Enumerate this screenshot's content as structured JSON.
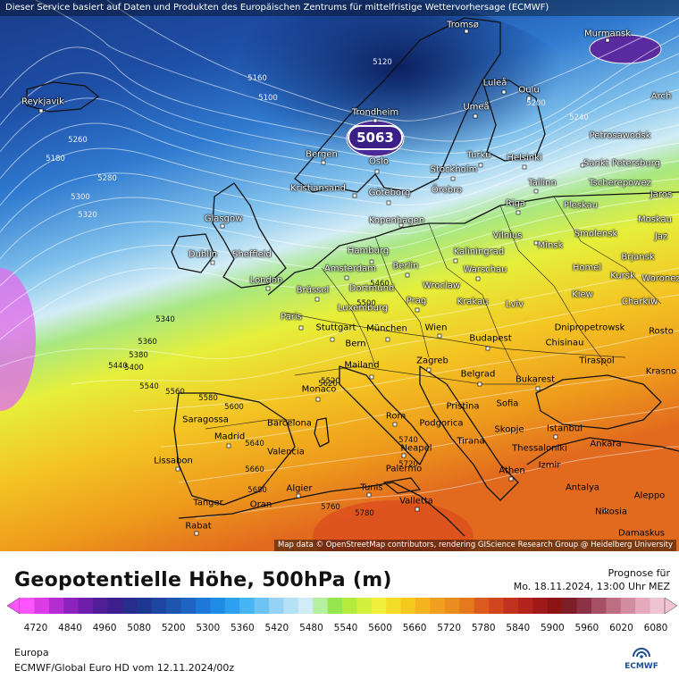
{
  "header": {
    "service_notice": "Dieser Service basiert auf Daten und Produkten des Europäischen Zentrums für mittelfristige Wettervorhersage (ECMWF)"
  },
  "map": {
    "attribution": "Map data © OpenStreetMap contributors, rendering GIScience Research Group @ Heidelberg University",
    "low_center_value": "5063",
    "cities": [
      "Tromsø",
      "Murmansk",
      "Reykjavik",
      "Luleå",
      "Oulu",
      "Arch",
      "Umeå",
      "Trondheim",
      "Petrosawodsk",
      "Bergen",
      "Oslo",
      "Turku",
      "Helsinki",
      "Sankt Petersburg",
      "Stockholm",
      "Kristiansand",
      "Göteborg",
      "Örebro",
      "Tallinn",
      "Tscherepowez",
      "Jaros",
      "Glasgow",
      "Riga",
      "Pleskau",
      "Kopenhagen",
      "Moskau",
      "Vilnius",
      "Smolensk",
      "Jaz",
      "Dublin",
      "Sheffield",
      "Hamburg",
      "Kaliningrad",
      "Minsk",
      "Brjansk",
      "Berlin",
      "Homel",
      "Kursk",
      "London",
      "Amsterdam",
      "Warschau",
      "Woronez",
      "Brüssel",
      "Dortmund",
      "Wroclaw",
      "Kiew",
      "Prag",
      "Krakau",
      "Charkiw",
      "Luxemburg",
      "Lviv",
      "Paris",
      "Dnipropetrowsk",
      "Stuttgart",
      "München",
      "Wien",
      "Chisinau",
      "Rosto",
      "Bern",
      "Budapest",
      "Tiraspol",
      "Mailand",
      "Zagreb",
      "Krasno",
      "Belgrad",
      "Monaco",
      "Bukarest",
      "Pristina",
      "Sofia",
      "Saragossa",
      "Barcelona",
      "Rom",
      "Podgorica",
      "Istanbul",
      "Madrid",
      "Skopje",
      "Tirana",
      "Ankara",
      "Neapel",
      "Valencia",
      "Thessaloniki",
      "Lissabon",
      "Palermo",
      "Athen",
      "Izmir",
      "Algier",
      "Tunis",
      "Antalya",
      "Aleppo",
      "Tanger",
      "Oran",
      "Valletta",
      "Nikosia",
      "Rabat",
      "Damaskus"
    ],
    "contour_labels": [
      "5100",
      "5120",
      "5160",
      "5180",
      "5200",
      "5240",
      "5260",
      "5280",
      "5300",
      "5320",
      "5340",
      "5360",
      "5380",
      "5400",
      "5440",
      "5460",
      "5500",
      "5520",
      "5540",
      "5560",
      "5580",
      "5600",
      "5620",
      "5640",
      "5660",
      "5680",
      "5720",
      "5740",
      "5760",
      "5780"
    ]
  },
  "footer": {
    "title": "Geopotentielle Höhe, 500hPa (m)",
    "forecast_label": "Prognose für",
    "forecast_time": "Mo. 18.11.2024, 13:00 Uhr MEZ",
    "region": "Europa",
    "model_run": "ECMWF/Global Euro HD vom  12.11.2024/00z",
    "logo_text": "ECMWF"
  },
  "legend": {
    "tick_labels": [
      "4720",
      "4840",
      "4960",
      "5080",
      "5200",
      "5300",
      "5360",
      "5420",
      "5480",
      "5540",
      "5600",
      "5660",
      "5720",
      "5780",
      "5840",
      "5900",
      "5960",
      "6020",
      "6080"
    ],
    "colors": [
      "#ff55ff",
      "#dc3ce6",
      "#b42dd2",
      "#8c23be",
      "#6e1eaa",
      "#501e96",
      "#3c1e8c",
      "#282d8c",
      "#1e3791",
      "#1e46a0",
      "#1e55af",
      "#1e64c3",
      "#1e78d7",
      "#1e8ce6",
      "#2da0f0",
      "#46b4f5",
      "#6ec3f5",
      "#96d2f5",
      "#b4e1f5",
      "#d2ebf8",
      "#b4f0a0",
      "#96e650",
      "#b4eb3c",
      "#d2f03c",
      "#f0f03c",
      "#f5dc28",
      "#f5c81e",
      "#f5b41e",
      "#f0a01e",
      "#eb8c1e",
      "#e6781e",
      "#dc5a1e",
      "#d2461e",
      "#c3321e",
      "#b4231e",
      "#a01919",
      "#8c1414",
      "#7d1e28",
      "#8c3246",
      "#a55064",
      "#be6e82",
      "#d28ca0",
      "#e6aabe",
      "#f0c3d2"
    ]
  }
}
